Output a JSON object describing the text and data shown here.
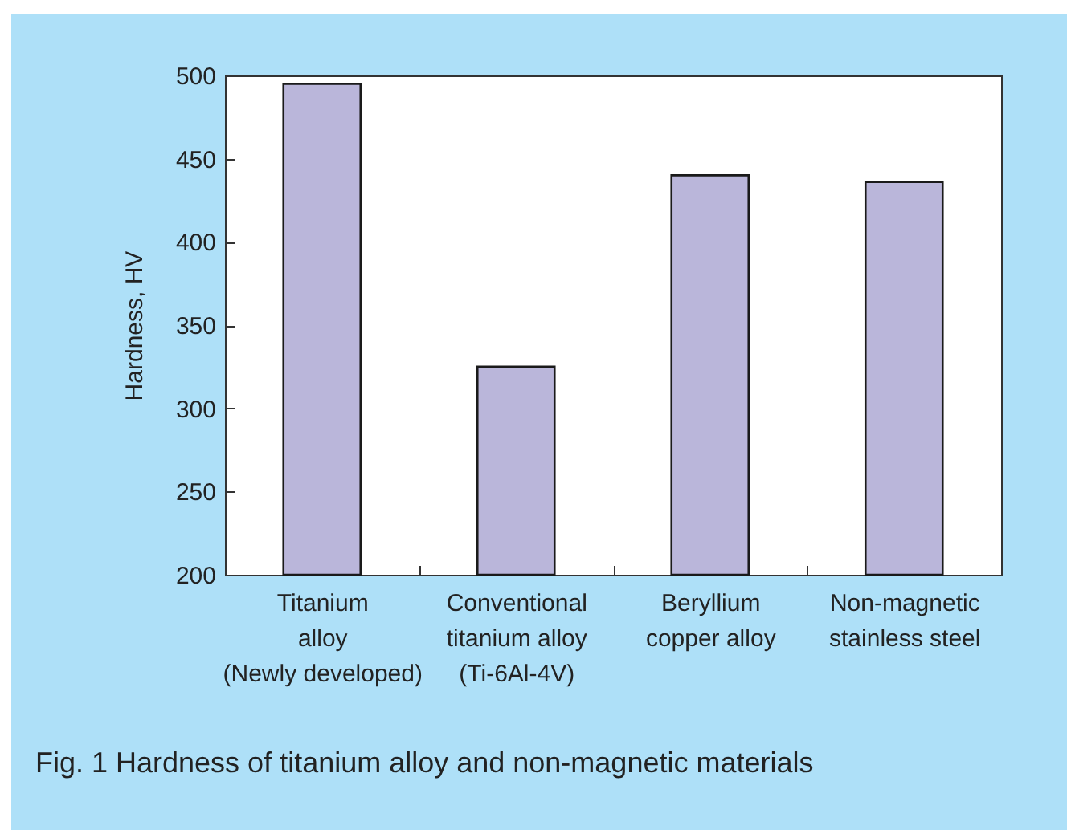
{
  "chart_data": {
    "type": "bar",
    "title": "Fig. 1  Hardness of titanium alloy and non-magnetic materials",
    "ylabel": "Hardness, HV",
    "categories": [
      "Titanium\nalloy\n(Newly developed)",
      "Conventional\ntitanium alloy\n(Ti-6Al-4V)",
      "Beryllium\ncopper alloy",
      "Non-magnetic\nstainless steel"
    ],
    "values": [
      495,
      325,
      440,
      436
    ],
    "color": "#bab6da",
    "ylim": [
      200,
      500
    ],
    "yticks": [
      200,
      250,
      300,
      350,
      400,
      450,
      500
    ],
    "grid": false
  }
}
